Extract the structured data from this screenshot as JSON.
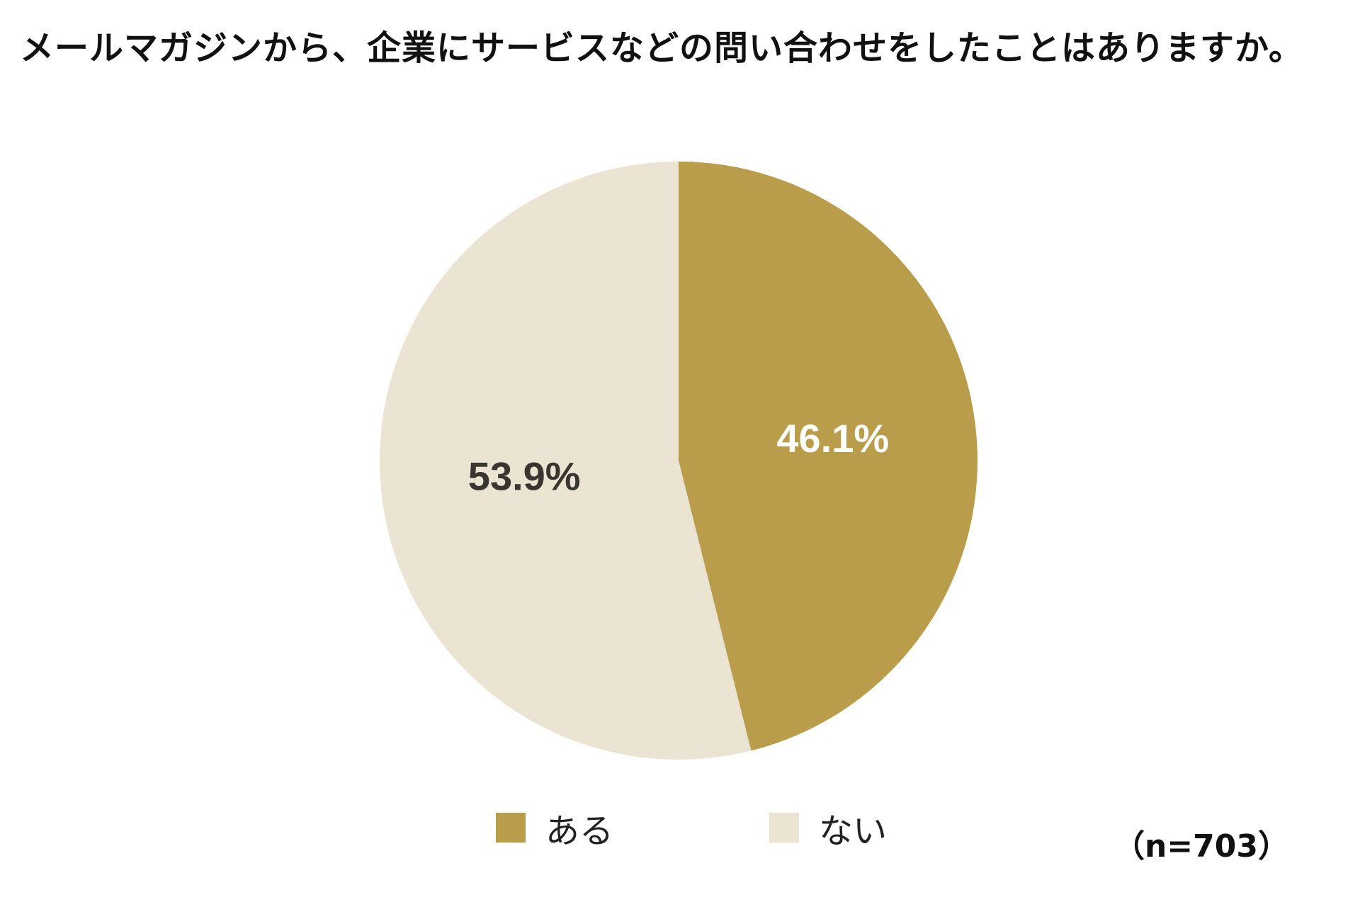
{
  "title": "メールマガジンから、企業にサービスなどの問い合わせをしたことはありますか。",
  "sample_size": "（n=703）",
  "colors": {
    "aru": "#B99D4B",
    "nai": "#EBE4D3",
    "label_on_dark": "#ffffff",
    "label_on_light": "#3a3530"
  },
  "chart_data": {
    "type": "pie",
    "start": "12 o'clock",
    "direction": "clockwise",
    "slices": [
      {
        "label": "ある",
        "value": 46.1,
        "display": "46.1%",
        "color": "#B99D4B"
      },
      {
        "label": "ない",
        "value": 53.9,
        "display": "53.9%",
        "color": "#EBE4D3"
      }
    ],
    "legend_position": "bottom-center"
  },
  "legend": [
    {
      "label": "ある",
      "color": "#B99D4B"
    },
    {
      "label": "ない",
      "color": "#EBE4D3"
    }
  ]
}
